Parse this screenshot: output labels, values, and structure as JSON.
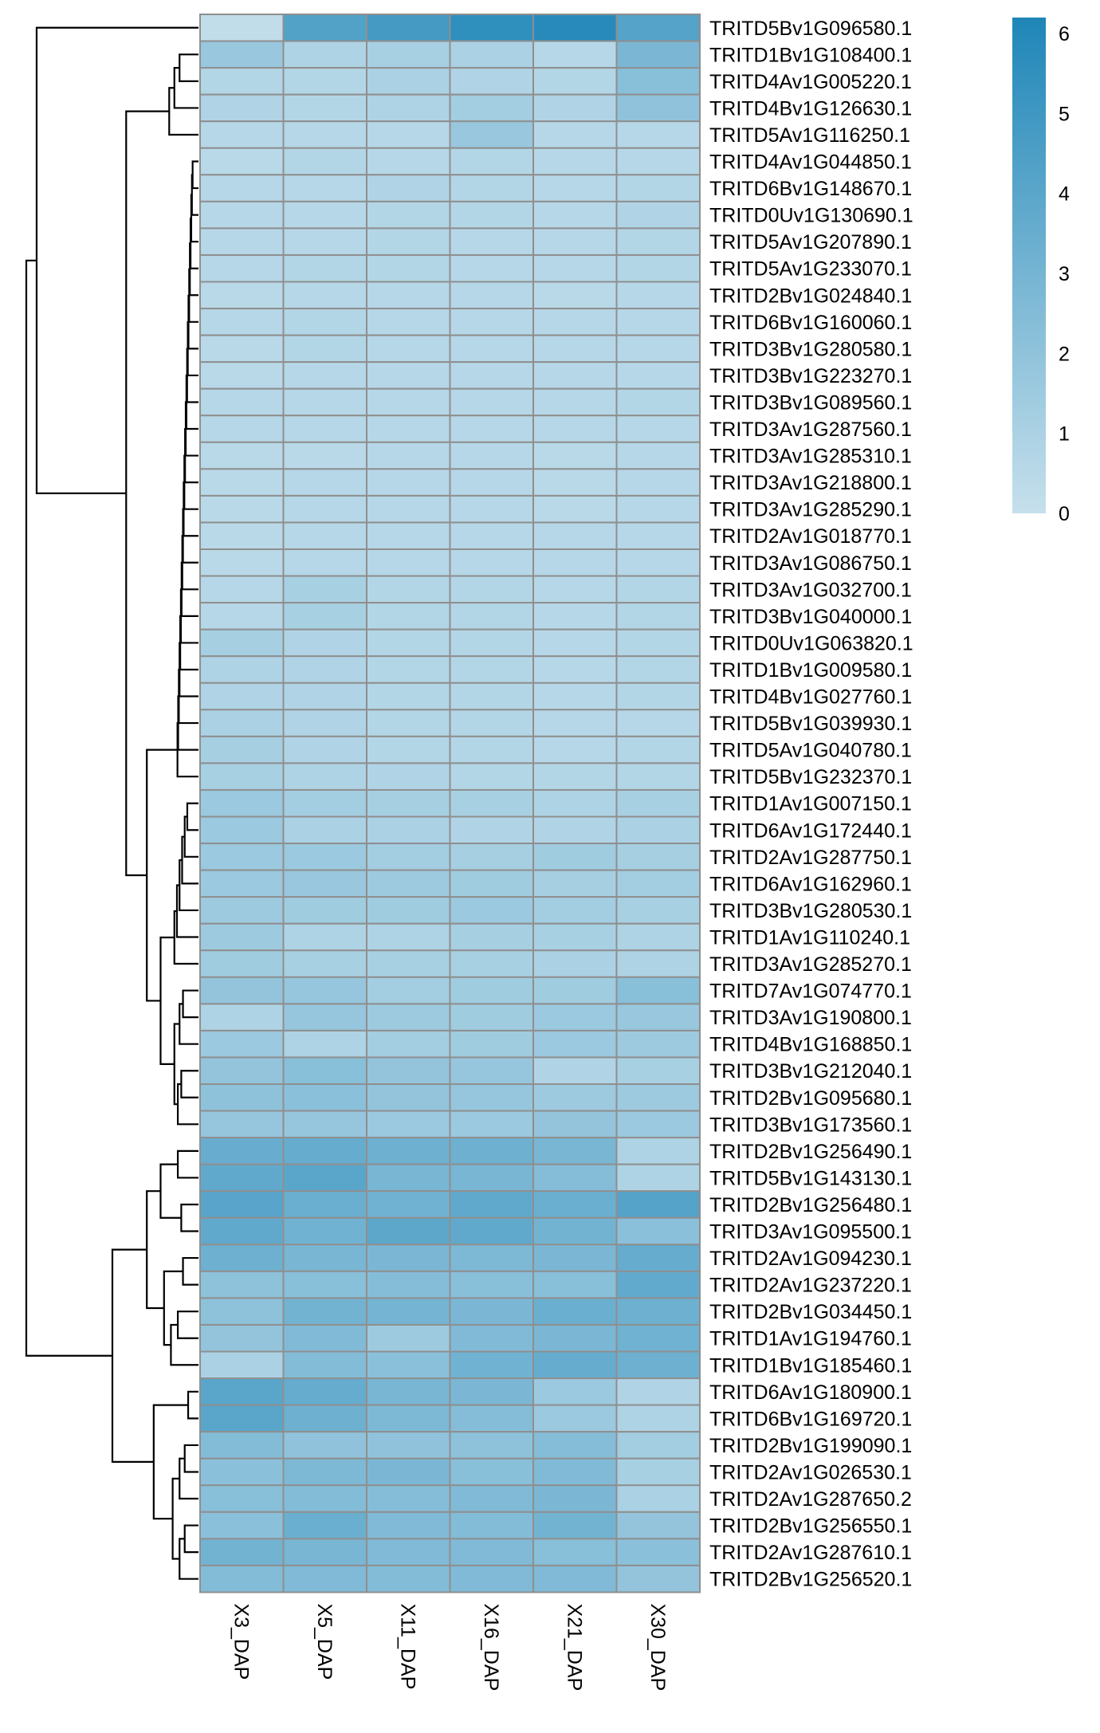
{
  "chart_data": {
    "type": "heatmap",
    "title": "",
    "xlabel": "",
    "ylabel": "",
    "columns": [
      "X3_DAP",
      "X5_DAP",
      "X11_DAP",
      "X16_DAP",
      "X21_DAP",
      "X30_DAP"
    ],
    "rows": [
      "TRITD5Bv1G096580.1",
      "TRITD1Bv1G108400.1",
      "TRITD4Av1G005220.1",
      "TRITD4Bv1G126630.1",
      "TRITD5Av1G116250.1",
      "TRITD4Av1G044850.1",
      "TRITD6Bv1G148670.1",
      "TRITD0Uv1G130690.1",
      "TRITD5Av1G207890.1",
      "TRITD5Av1G233070.1",
      "TRITD2Bv1G024840.1",
      "TRITD6Bv1G160060.1",
      "TRITD3Bv1G280580.1",
      "TRITD3Bv1G223270.1",
      "TRITD3Bv1G089560.1",
      "TRITD3Av1G287560.1",
      "TRITD3Av1G285310.1",
      "TRITD3Av1G218800.1",
      "TRITD3Av1G285290.1",
      "TRITD2Av1G018770.1",
      "TRITD3Av1G086750.1",
      "TRITD3Av1G032700.1",
      "TRITD3Bv1G040000.1",
      "TRITD0Uv1G063820.1",
      "TRITD1Bv1G009580.1",
      "TRITD4Bv1G027760.1",
      "TRITD5Bv1G039930.1",
      "TRITD5Av1G040780.1",
      "TRITD5Bv1G232370.1",
      "TRITD1Av1G007150.1",
      "TRITD6Av1G172440.1",
      "TRITD2Av1G287750.1",
      "TRITD6Av1G162960.1",
      "TRITD3Bv1G280530.1",
      "TRITD1Av1G110240.1",
      "TRITD3Av1G285270.1",
      "TRITD7Av1G074770.1",
      "TRITD3Av1G190800.1",
      "TRITD4Bv1G168850.1",
      "TRITD3Bv1G212040.1",
      "TRITD2Bv1G095680.1",
      "TRITD3Bv1G173560.1",
      "TRITD2Bv1G256490.1",
      "TRITD5Bv1G143130.1",
      "TRITD2Bv1G256480.1",
      "TRITD3Av1G095500.1",
      "TRITD2Av1G094230.1",
      "TRITD2Av1G237220.1",
      "TRITD2Bv1G034450.1",
      "TRITD1Av1G194760.1",
      "TRITD1Bv1G185460.1",
      "TRITD6Av1G180900.1",
      "TRITD6Bv1G169720.1",
      "TRITD2Bv1G199090.1",
      "TRITD2Av1G026530.1",
      "TRITD2Av1G287650.2",
      "TRITD2Bv1G256550.1",
      "TRITD2Av1G287610.1",
      "TRITD2Bv1G256520.1"
    ],
    "values": [
      [
        0.2,
        4.3,
        4.8,
        5.6,
        5.9,
        4.2
      ],
      [
        1.7,
        0.9,
        1.1,
        1.0,
        0.6,
        2.8
      ],
      [
        0.7,
        0.7,
        1.0,
        0.8,
        0.7,
        2.3
      ],
      [
        0.8,
        0.7,
        0.9,
        1.3,
        0.8,
        2.0
      ],
      [
        0.6,
        0.6,
        0.6,
        1.7,
        0.6,
        0.6
      ],
      [
        0.5,
        0.7,
        0.6,
        0.7,
        0.6,
        0.6
      ],
      [
        0.6,
        0.6,
        0.8,
        0.7,
        0.6,
        0.7
      ],
      [
        0.6,
        0.6,
        0.7,
        0.7,
        0.6,
        0.8
      ],
      [
        0.6,
        0.6,
        0.7,
        0.6,
        0.6,
        0.7
      ],
      [
        0.6,
        0.7,
        0.7,
        0.6,
        0.6,
        0.7
      ],
      [
        0.5,
        0.6,
        0.6,
        0.6,
        0.5,
        0.6
      ],
      [
        0.6,
        0.7,
        0.6,
        0.6,
        0.6,
        0.6
      ],
      [
        0.5,
        0.7,
        0.6,
        0.6,
        0.6,
        0.6
      ],
      [
        0.5,
        0.6,
        0.6,
        0.6,
        0.6,
        0.6
      ],
      [
        0.6,
        0.6,
        0.6,
        0.6,
        0.6,
        0.7
      ],
      [
        0.6,
        0.6,
        0.6,
        0.6,
        0.6,
        0.6
      ],
      [
        0.5,
        0.5,
        0.6,
        0.6,
        0.5,
        0.6
      ],
      [
        0.5,
        0.6,
        0.6,
        0.6,
        0.5,
        0.6
      ],
      [
        0.5,
        0.6,
        0.6,
        0.6,
        0.5,
        0.6
      ],
      [
        0.5,
        0.6,
        0.6,
        0.6,
        0.6,
        0.6
      ],
      [
        0.5,
        0.6,
        0.6,
        0.6,
        0.6,
        0.6
      ],
      [
        0.6,
        1.1,
        0.7,
        0.7,
        0.6,
        0.7
      ],
      [
        0.6,
        1.1,
        0.7,
        0.7,
        0.6,
        0.7
      ],
      [
        1.2,
        0.8,
        0.7,
        0.7,
        0.6,
        0.7
      ],
      [
        0.9,
        0.8,
        0.7,
        0.7,
        0.6,
        0.7
      ],
      [
        0.8,
        0.8,
        0.7,
        0.7,
        0.6,
        0.7
      ],
      [
        1.0,
        0.8,
        0.7,
        0.7,
        0.6,
        0.6
      ],
      [
        1.2,
        0.8,
        0.7,
        0.7,
        0.6,
        0.7
      ],
      [
        1.1,
        0.9,
        0.8,
        0.7,
        0.7,
        0.7
      ],
      [
        1.6,
        1.3,
        1.2,
        1.1,
        0.9,
        1.1
      ],
      [
        1.6,
        1.0,
        1.0,
        0.8,
        0.8,
        1.0
      ],
      [
        1.6,
        1.6,
        1.3,
        1.2,
        1.4,
        1.2
      ],
      [
        1.6,
        1.7,
        1.5,
        1.4,
        1.2,
        1.3
      ],
      [
        1.5,
        1.4,
        1.4,
        1.6,
        1.3,
        1.1
      ],
      [
        1.5,
        0.9,
        0.9,
        1.2,
        1.1,
        0.9
      ],
      [
        1.4,
        1.1,
        1.1,
        1.1,
        1.0,
        0.9
      ],
      [
        1.9,
        1.8,
        1.3,
        1.4,
        1.4,
        2.3
      ],
      [
        0.9,
        1.8,
        1.5,
        1.4,
        1.6,
        1.7
      ],
      [
        1.6,
        0.9,
        1.3,
        1.4,
        1.6,
        1.5
      ],
      [
        1.9,
        2.3,
        1.9,
        1.8,
        0.8,
        1.1
      ],
      [
        2.1,
        2.2,
        1.9,
        1.8,
        1.5,
        1.5
      ],
      [
        1.8,
        1.8,
        1.6,
        1.6,
        1.9,
        1.6
      ],
      [
        3.5,
        3.6,
        3.3,
        3.3,
        2.9,
        0.9
      ],
      [
        3.8,
        4.0,
        2.9,
        2.9,
        2.4,
        0.9
      ],
      [
        4.1,
        3.4,
        3.2,
        3.8,
        3.4,
        4.2
      ],
      [
        3.8,
        3.2,
        3.9,
        3.8,
        3.1,
        2.2
      ],
      [
        3.3,
        2.9,
        2.8,
        2.7,
        2.8,
        3.6
      ],
      [
        2.1,
        2.3,
        2.4,
        2.3,
        2.3,
        3.7
      ],
      [
        2.1,
        3.1,
        3.0,
        2.8,
        3.4,
        3.3
      ],
      [
        1.9,
        2.6,
        1.5,
        2.6,
        2.8,
        3.2
      ],
      [
        1.0,
        2.5,
        2.2,
        3.2,
        3.6,
        3.3
      ],
      [
        4.0,
        3.6,
        2.9,
        2.8,
        1.6,
        0.8
      ],
      [
        4.0,
        3.3,
        2.7,
        2.4,
        1.6,
        0.9
      ],
      [
        2.5,
        2.0,
        2.0,
        2.1,
        2.4,
        1.3
      ],
      [
        2.2,
        2.7,
        2.8,
        2.3,
        2.6,
        1.1
      ],
      [
        2.3,
        2.5,
        2.4,
        2.6,
        2.8,
        1.0
      ],
      [
        2.2,
        3.4,
        2.6,
        2.5,
        3.1,
        1.9
      ],
      [
        3.1,
        2.9,
        2.6,
        2.6,
        2.3,
        2.2
      ],
      [
        2.5,
        2.6,
        2.5,
        2.6,
        2.6,
        1.9
      ]
    ],
    "color_scale": {
      "min": 0,
      "max": 6.2,
      "low_color": "#c6e0ec",
      "high_color": "#1f86b8",
      "ticks": [
        0,
        1,
        2,
        3,
        4,
        5,
        6
      ]
    },
    "row_dendrogram": true,
    "legend_position": "top-right"
  }
}
